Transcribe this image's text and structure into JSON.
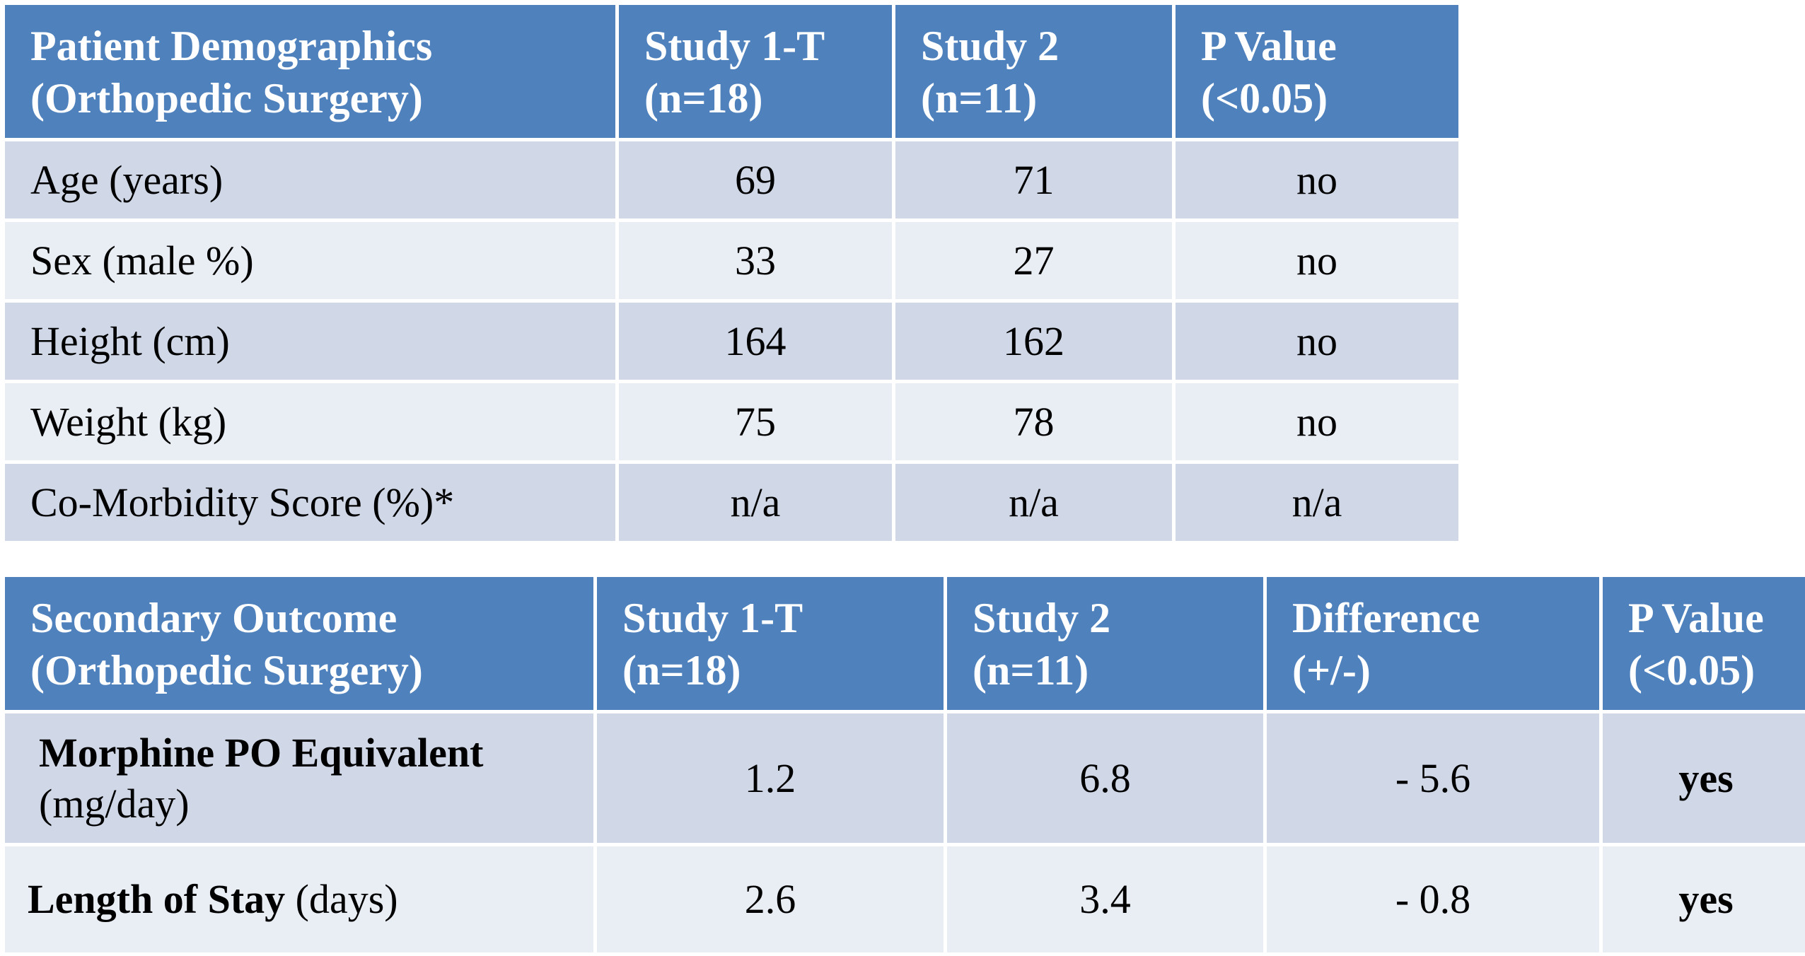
{
  "demographics": {
    "headers": [
      [
        "Patient Demographics",
        "(Orthopedic Surgery)"
      ],
      [
        "Study  1-T",
        "(n=18)"
      ],
      [
        "Study 2",
        "(n=11)"
      ],
      [
        "P Value",
        "(<0.05)"
      ]
    ],
    "rows": [
      {
        "label": "Age (years)",
        "study1": "69",
        "study2": "71",
        "p": "no"
      },
      {
        "label": "Sex (male %)",
        "study1": "33",
        "study2": "27",
        "p": "no"
      },
      {
        "label": "Height (cm)",
        "study1": "164",
        "study2": "162",
        "p": "no"
      },
      {
        "label": "Weight (kg)",
        "study1": "75",
        "study2": "78",
        "p": "no"
      },
      {
        "label": "Co-Morbidity Score (%)*",
        "study1": "n/a",
        "study2": "n/a",
        "p": "n/a"
      }
    ]
  },
  "secondary": {
    "headers": [
      [
        "Secondary Outcome",
        "(Orthopedic Surgery)"
      ],
      [
        "Study  1-T",
        "(n=18)"
      ],
      [
        "Study 2",
        "(n=11)"
      ],
      [
        "Difference",
        "(+/-)"
      ],
      [
        "P Value",
        "(<0.05)"
      ]
    ],
    "rows": [
      {
        "label_bold": "Morphine PO Equivalent",
        "label_rest": "(mg/day)",
        "study1": "1.2",
        "study2": "6.8",
        "diff": "- 5.6",
        "p": "yes"
      },
      {
        "label_bold": "Length of Stay",
        "label_rest": " (days)",
        "study1": "2.6",
        "study2": "3.4",
        "diff": "- 0.8",
        "p": "yes"
      }
    ]
  },
  "colors": {
    "header_bg": "#4f81bd",
    "row_odd": "#d0d8e8",
    "row_even": "#e9edf4"
  }
}
